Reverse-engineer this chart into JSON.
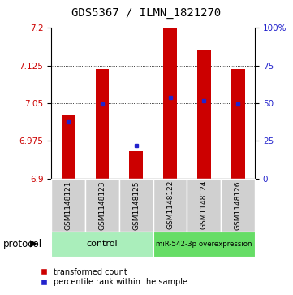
{
  "title": "GDS5367 / ILMN_1821270",
  "samples": [
    "GSM1148121",
    "GSM1148123",
    "GSM1148125",
    "GSM1148122",
    "GSM1148124",
    "GSM1148126"
  ],
  "bar_base": 6.9,
  "bar_tops": [
    7.025,
    7.118,
    6.955,
    7.2,
    7.155,
    7.118
  ],
  "percentile_values": [
    7.012,
    7.048,
    6.966,
    7.062,
    7.055,
    7.048
  ],
  "ylim_left": [
    6.9,
    7.2
  ],
  "ylim_right": [
    0,
    100
  ],
  "yticks_left": [
    6.9,
    6.975,
    7.05,
    7.125,
    7.2
  ],
  "yticks_right": [
    0,
    25,
    50,
    75,
    100
  ],
  "bar_color": "#CC0000",
  "blue_color": "#2222CC",
  "bg_color": "#FFFFFF",
  "control_color": "#AAEEBB",
  "mir_color": "#66DD66",
  "sample_box_color": "#D0D0D0",
  "title_fontsize": 10,
  "tick_fontsize": 7.5,
  "sample_fontsize": 6.5,
  "legend_fontsize": 7,
  "protocol_fontsize": 8.5,
  "group_label_fontsize": 8
}
